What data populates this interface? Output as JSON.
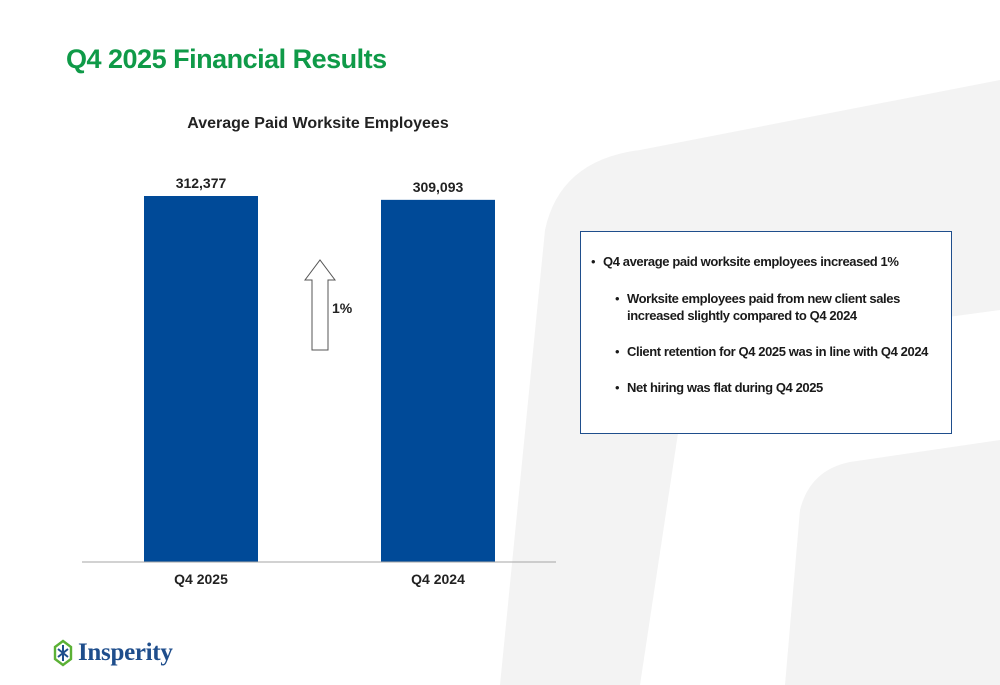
{
  "page": {
    "title": "Q4 2025 Financial Results"
  },
  "chart_data": {
    "type": "bar",
    "title": "Average Paid Worksite Employees",
    "categories": [
      "Q4 2025",
      "Q4 2024"
    ],
    "values": [
      312377,
      309093
    ],
    "value_labels": [
      "312,377",
      "309,093"
    ],
    "ylim": [
      0,
      312377
    ],
    "xlabel": "",
    "ylabel": "",
    "grid": false,
    "bar_color": "#004a98",
    "annotation": {
      "label": "1%",
      "icon": "up-arrow-icon",
      "position": "between bars"
    }
  },
  "notes": {
    "main_point": "Q4 average paid worksite employees increased 1%",
    "sub_points": [
      "Worksite employees paid from new client sales increased slightly compared to Q4 2024",
      "Client retention for Q4 2025 was in line with Q4 2024",
      "Net hiring was flat during Q4 2025"
    ]
  },
  "brand": {
    "name": "Insperity",
    "logo_icon": "insperity-logo-icon",
    "title_color": "#0f9a48",
    "logo_color": "#1f4e8c",
    "logo_accent_color": "#5bb135",
    "box_border_color": "#1f4e8c"
  }
}
